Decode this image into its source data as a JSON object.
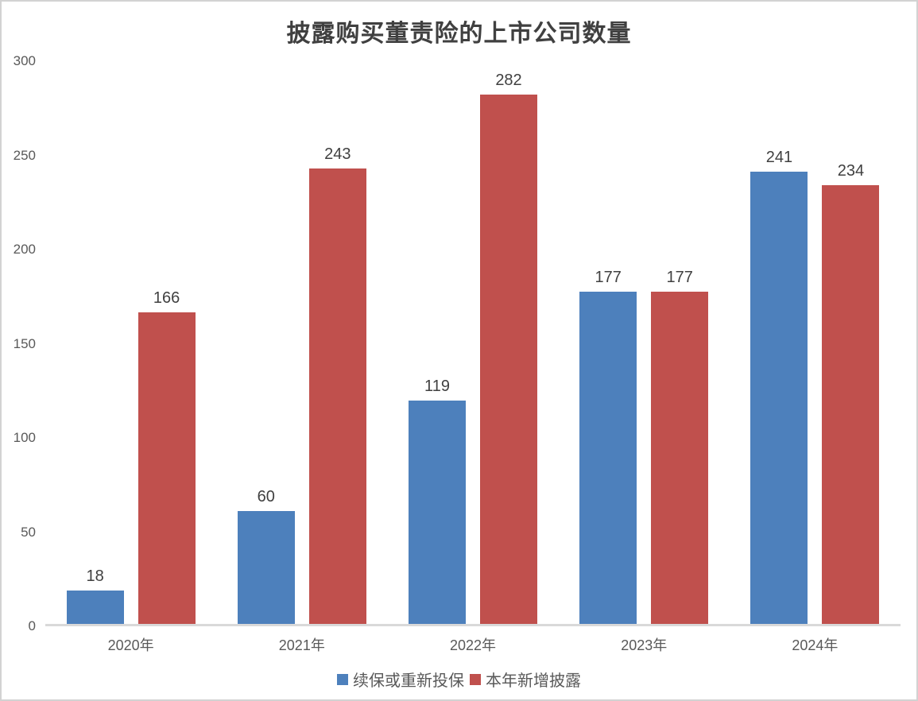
{
  "chart_data": {
    "type": "bar",
    "title": "披露购买董责险的上市公司数量",
    "categories": [
      "2020年",
      "2021年",
      "2022年",
      "2023年",
      "2024年"
    ],
    "series": [
      {
        "name": "续保或重新投保",
        "color": "#4d80bc",
        "values": [
          18,
          60,
          119,
          177,
          241
        ]
      },
      {
        "name": "本年新增披露",
        "color": "#c0504d",
        "values": [
          166,
          243,
          282,
          177,
          234
        ]
      }
    ],
    "ylim": [
      0,
      300
    ],
    "yticks": [
      0,
      50,
      100,
      150,
      200,
      250,
      300
    ],
    "grid": false,
    "data_labels": true,
    "legend_position": "bottom"
  },
  "colors": {
    "series_blue": "#4d80bc",
    "series_red": "#c0504d",
    "axis_line": "#d9d9d9",
    "tick_label": "#595959",
    "data_label": "#404040",
    "title": "#404040",
    "frame_border": "#d2d2d2",
    "background": "#ffffff"
  }
}
